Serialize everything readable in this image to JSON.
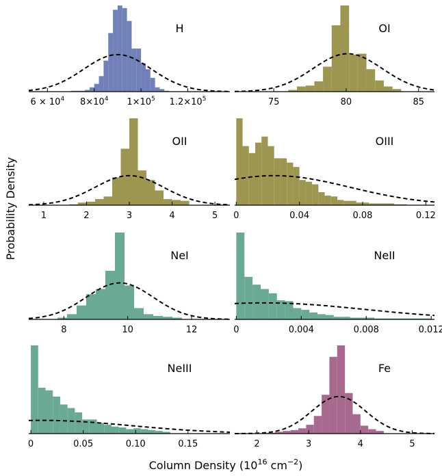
{
  "figure": {
    "xlabel": "Column Density (10",
    "xlabel_sup": "16",
    "xlabel_unit": " cm",
    "xlabel_unit_sup": "−2",
    "xlabel_end": ")",
    "ylabel": "Probability Density"
  },
  "chart_data": [
    {
      "type": "bar",
      "title": "H",
      "color": "#7180b9",
      "xlim": [
        52000,
        138000
      ],
      "ymax": 1.0,
      "ticks": [
        60000,
        80000,
        100000,
        120000
      ],
      "tick_labels": [
        {
          "base": "6 × 10",
          "exp": "4"
        },
        {
          "base": "8×10",
          "exp": "4"
        },
        {
          "base": "1×10",
          "exp": "5"
        },
        {
          "base": "1.2×10",
          "exp": "5"
        }
      ],
      "bin_edges": [
        70000,
        72000,
        74000,
        76000,
        78000,
        80000,
        82000,
        84000,
        86000,
        88000,
        90000,
        92000,
        94000,
        96000,
        98000,
        100000,
        102000,
        104000,
        106000,
        108000,
        110000,
        112000
      ],
      "values": [
        0.01,
        0.01,
        0.01,
        0.02,
        0.05,
        0.09,
        0.18,
        0.36,
        0.68,
        0.95,
        1.0,
        0.97,
        0.82,
        0.5,
        0.5,
        0.33,
        0.26,
        0.16,
        0.05,
        0.03,
        0.01
      ],
      "gaussian": {
        "mean": 90000,
        "sigma": 14500,
        "peak": 0.43
      }
    },
    {
      "type": "bar",
      "title": "OI",
      "color": "#9d9651",
      "xlim": [
        72.3,
        86.1
      ],
      "ymax": 1.0,
      "ticks": [
        75,
        80,
        85
      ],
      "tick_labels": [
        "75",
        "80",
        "85"
      ],
      "bin_edges": [
        76,
        76.6,
        77.2,
        77.8,
        78.4,
        79.0,
        79.6,
        80.2,
        80.8,
        81.4,
        82.0,
        82.6,
        83.2,
        83.8
      ],
      "values": [
        0.02,
        0.06,
        0.07,
        0.12,
        0.29,
        0.77,
        1.0,
        0.43,
        0.44,
        0.26,
        0.13,
        0.06,
        0.03
      ],
      "gaussian": {
        "mean": 80.1,
        "sigma": 2.4,
        "peak": 0.44
      }
    },
    {
      "type": "bar",
      "title": "OII",
      "color": "#9d9651",
      "xlim": [
        0.65,
        5.35
      ],
      "ymax": 1.0,
      "ticks": [
        1,
        2,
        3,
        4,
        5
      ],
      "tick_labels": [
        "1",
        "2",
        "3",
        "4",
        "5"
      ],
      "bin_edges": [
        1.6,
        1.8,
        2.0,
        2.2,
        2.4,
        2.6,
        2.8,
        3.0,
        3.2,
        3.4,
        3.6,
        3.8,
        4.0,
        4.2,
        4.4
      ],
      "values": [
        0.01,
        0.03,
        0.04,
        0.07,
        0.1,
        0.32,
        0.65,
        1.0,
        0.4,
        0.29,
        0.17,
        0.07,
        0.06,
        0.05
      ],
      "gaussian": {
        "mean": 3.0,
        "sigma": 0.8,
        "peak": 0.34
      }
    },
    {
      "type": "bar",
      "title": "OIII",
      "color": "#9d9651",
      "xlim": [
        -0.001,
        0.1255
      ],
      "ymax": 1.0,
      "ticks": [
        0,
        0.04,
        0.08,
        0.12
      ],
      "tick_labels": [
        "0",
        "0.04",
        "0.08",
        "0.12"
      ],
      "bin_edges": [
        0,
        0.004,
        0.008,
        0.012,
        0.016,
        0.02,
        0.024,
        0.028,
        0.032,
        0.036,
        0.04,
        0.044,
        0.048,
        0.052,
        0.056,
        0.06,
        0.064,
        0.068,
        0.072,
        0.076,
        0.08,
        0.084,
        0.088,
        0.092,
        0.096,
        0.1,
        0.104,
        0.108
      ],
      "values": [
        1.0,
        0.68,
        0.6,
        0.72,
        0.79,
        0.68,
        0.54,
        0.54,
        0.49,
        0.44,
        0.29,
        0.27,
        0.24,
        0.15,
        0.11,
        0.1,
        0.06,
        0.05,
        0.05,
        0.03,
        0.03,
        0.02,
        0.02,
        0.02,
        0.02,
        0.01,
        0.01
      ],
      "gaussian": {
        "mean": 0.024,
        "sigma": 0.048,
        "peak": 0.34
      }
    },
    {
      "type": "bar",
      "title": "NeI",
      "color": "#6aa995",
      "xlim": [
        6.9,
        13.2
      ],
      "ymax": 1.0,
      "ticks": [
        8,
        10,
        12
      ],
      "tick_labels": [
        "8",
        "10",
        "12"
      ],
      "bin_edges": [
        7.8,
        8.1,
        8.4,
        8.7,
        9.0,
        9.3,
        9.6,
        9.9,
        10.2,
        10.5,
        10.8,
        11.1,
        11.4,
        11.7
      ],
      "values": [
        0.02,
        0.06,
        0.16,
        0.29,
        0.35,
        0.56,
        1.0,
        0.39,
        0.13,
        0.06,
        0.04,
        0.03,
        0.02
      ],
      "gaussian": {
        "mean": 9.75,
        "sigma": 1.05,
        "peak": 0.42
      }
    },
    {
      "type": "bar",
      "title": "NeII",
      "color": "#6aa995",
      "xlim": [
        -0.0001,
        0.0122
      ],
      "ymax": 1.0,
      "ticks": [
        0,
        0.004,
        0.008,
        0.012
      ],
      "tick_labels": [
        "0",
        "0.004",
        "0.008",
        "0.012"
      ],
      "bin_edges": [
        0,
        0.0005,
        0.001,
        0.0015,
        0.002,
        0.0025,
        0.003,
        0.0035,
        0.004,
        0.0045,
        0.005,
        0.0055,
        0.006,
        0.0065,
        0.007,
        0.0075,
        0.008,
        0.0085,
        0.009,
        0.0095,
        0.01,
        0.0105,
        0.011,
        0.0115,
        0.012
      ],
      "values": [
        1.0,
        0.49,
        0.4,
        0.35,
        0.3,
        0.22,
        0.21,
        0.13,
        0.11,
        0.08,
        0.06,
        0.05,
        0.03,
        0.03,
        0.02,
        0.02,
        0.02,
        0.01,
        0.01,
        0.01,
        0.01,
        0.01,
        0.01,
        0.01
      ],
      "gaussian": {
        "mean": 0.0017,
        "sigma": 0.0062,
        "peak": 0.19
      }
    },
    {
      "type": "bar",
      "title": "NeIII",
      "color": "#6aa995",
      "xlim": [
        -0.002,
        0.19
      ],
      "ymax": 1.0,
      "ticks": [
        0,
        0.05,
        0.1,
        0.15
      ],
      "tick_labels": [
        "0",
        "0.05",
        "0.10",
        "0.15"
      ],
      "bin_edges": [
        0,
        0.007,
        0.014,
        0.021,
        0.028,
        0.035,
        0.042,
        0.049,
        0.056,
        0.063,
        0.07,
        0.077,
        0.084,
        0.091,
        0.098,
        0.105,
        0.112,
        0.119,
        0.126,
        0.133
      ],
      "values": [
        1.0,
        0.52,
        0.49,
        0.42,
        0.33,
        0.29,
        0.24,
        0.16,
        0.16,
        0.12,
        0.1,
        0.08,
        0.07,
        0.05,
        0.06,
        0.05,
        0.04,
        0.03,
        0.02
      ],
      "gaussian": {
        "mean": 0.01,
        "sigma": 0.085,
        "peak": 0.15
      }
    },
    {
      "type": "bar",
      "title": "Fe",
      "color": "#a8698e",
      "xlim": [
        1.57,
        5.43
      ],
      "ymax": 1.0,
      "ticks": [
        2,
        3,
        4,
        5
      ],
      "tick_labels": [
        "2",
        "3",
        "4",
        "5"
      ],
      "bin_edges": [
        2.2,
        2.35,
        2.5,
        2.65,
        2.8,
        2.95,
        3.1,
        3.25,
        3.4,
        3.55,
        3.7,
        3.85,
        4.0,
        4.15,
        4.3,
        4.45
      ],
      "values": [
        0.01,
        0.02,
        0.03,
        0.04,
        0.06,
        0.1,
        0.2,
        0.44,
        0.87,
        1.0,
        0.46,
        0.22,
        0.09,
        0.05,
        0.03
      ],
      "gaussian": {
        "mean": 3.58,
        "sigma": 0.52,
        "peak": 0.42
      }
    }
  ]
}
